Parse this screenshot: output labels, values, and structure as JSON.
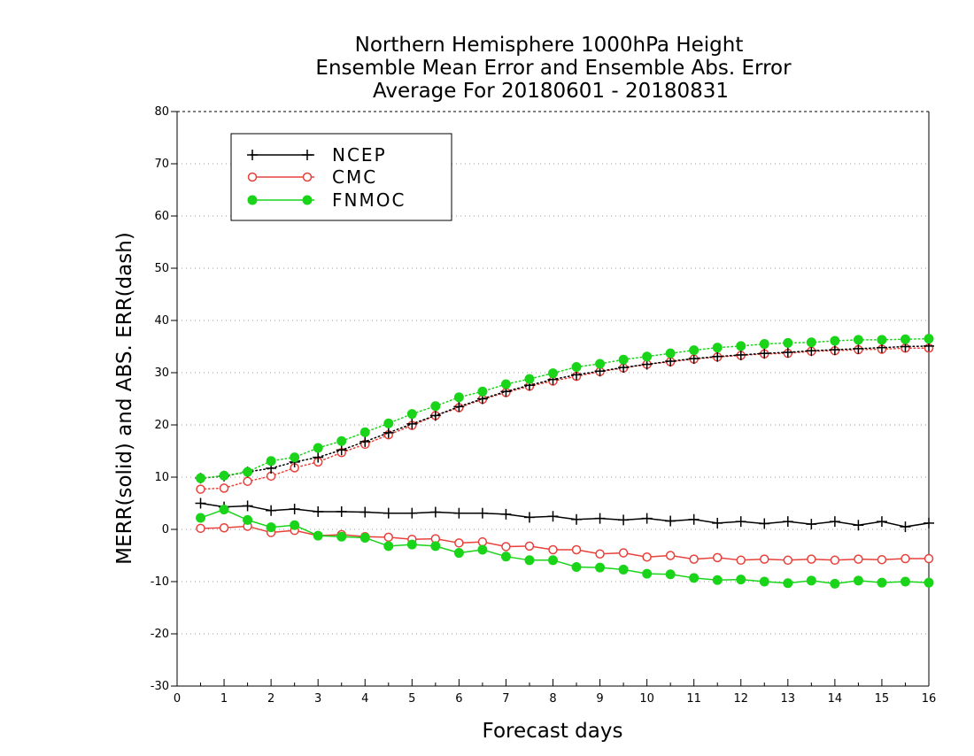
{
  "chart_data": {
    "type": "line",
    "title_lines": [
      "Northern Hemisphere 1000hPa Height",
      "Ensemble Mean Error and Ensemble Abs. Error",
      "Average For 20180601 - 20180831"
    ],
    "xlabel": "Forecast days",
    "ylabel": "MERR(solid) and ABS. ERR(dash)",
    "xlim": [
      0,
      16
    ],
    "ylim": [
      -30,
      80
    ],
    "x_ticks": [
      0,
      1,
      2,
      3,
      4,
      5,
      6,
      7,
      8,
      9,
      10,
      11,
      12,
      13,
      14,
      15,
      16
    ],
    "y_ticks": [
      -30,
      -20,
      -10,
      0,
      10,
      20,
      30,
      40,
      50,
      60,
      70,
      80
    ],
    "grid": "horizontal dotted",
    "legend_position": "top-left",
    "x": [
      0.5,
      1.0,
      1.5,
      2.0,
      2.5,
      3.0,
      3.5,
      4.0,
      4.5,
      5.0,
      5.5,
      6.0,
      6.5,
      7.0,
      7.5,
      8.0,
      8.5,
      9.0,
      9.5,
      10.0,
      10.5,
      11.0,
      11.5,
      12.0,
      12.5,
      13.0,
      13.5,
      14.0,
      14.5,
      15.0,
      15.5,
      16.0
    ],
    "series": [
      {
        "name": "NCEP",
        "color": "#000000",
        "marker": "plus",
        "merr": [
          5.0,
          4.3,
          4.5,
          3.6,
          3.9,
          3.4,
          3.4,
          3.3,
          3.1,
          3.1,
          3.3,
          3.1,
          3.1,
          2.9,
          2.3,
          2.5,
          1.9,
          2.1,
          1.8,
          2.1,
          1.6,
          1.9,
          1.2,
          1.5,
          1.1,
          1.5,
          1.0,
          1.5,
          0.8,
          1.5,
          0.5,
          1.2
        ],
        "abs_err": [
          9.8,
          10.2,
          11.0,
          11.7,
          12.9,
          13.8,
          15.2,
          16.8,
          18.5,
          20.2,
          21.8,
          23.5,
          25.0,
          26.4,
          27.6,
          28.7,
          29.6,
          30.3,
          31.0,
          31.6,
          32.2,
          32.7,
          33.1,
          33.4,
          33.7,
          33.9,
          34.2,
          34.4,
          34.6,
          34.8,
          35.0,
          35.1
        ]
      },
      {
        "name": "CMC",
        "color": "#e8403a",
        "marker": "open-circle",
        "merr": [
          0.2,
          0.3,
          0.6,
          -0.6,
          -0.2,
          -1.2,
          -1.0,
          -1.4,
          -1.5,
          -1.9,
          -1.8,
          -2.6,
          -2.4,
          -3.3,
          -3.2,
          -3.9,
          -3.9,
          -4.7,
          -4.5,
          -5.3,
          -5.0,
          -5.7,
          -5.4,
          -5.9,
          -5.7,
          -5.9,
          -5.7,
          -5.9,
          -5.7,
          -5.8,
          -5.6,
          -5.6
        ],
        "abs_err": [
          7.7,
          7.9,
          9.2,
          10.2,
          11.8,
          12.9,
          14.7,
          16.3,
          18.1,
          19.9,
          21.8,
          23.3,
          24.9,
          26.2,
          27.4,
          28.4,
          29.3,
          30.2,
          30.9,
          31.6,
          32.1,
          32.6,
          33.0,
          33.3,
          33.6,
          33.7,
          34.1,
          34.2,
          34.4,
          34.5,
          34.7,
          34.7
        ]
      },
      {
        "name": "FNMOC",
        "color": "#1ad41a",
        "marker": "filled-circle",
        "merr": [
          2.2,
          3.8,
          1.8,
          0.4,
          0.8,
          -1.2,
          -1.4,
          -1.6,
          -3.2,
          -2.9,
          -3.2,
          -4.5,
          -3.9,
          -5.2,
          -5.9,
          -5.9,
          -7.2,
          -7.3,
          -7.7,
          -8.5,
          -8.6,
          -9.3,
          -9.7,
          -9.6,
          -10.0,
          -10.3,
          -9.8,
          -10.4,
          -9.8,
          -10.2,
          -10.0,
          -10.2
        ],
        "abs_err": [
          9.8,
          10.3,
          11.0,
          13.1,
          13.8,
          15.6,
          16.9,
          18.6,
          20.3,
          22.1,
          23.6,
          25.3,
          26.4,
          27.8,
          28.8,
          29.9,
          31.1,
          31.7,
          32.5,
          33.1,
          33.7,
          34.3,
          34.8,
          35.1,
          35.5,
          35.7,
          35.8,
          36.1,
          36.3,
          36.3,
          36.4,
          36.5
        ]
      }
    ]
  }
}
